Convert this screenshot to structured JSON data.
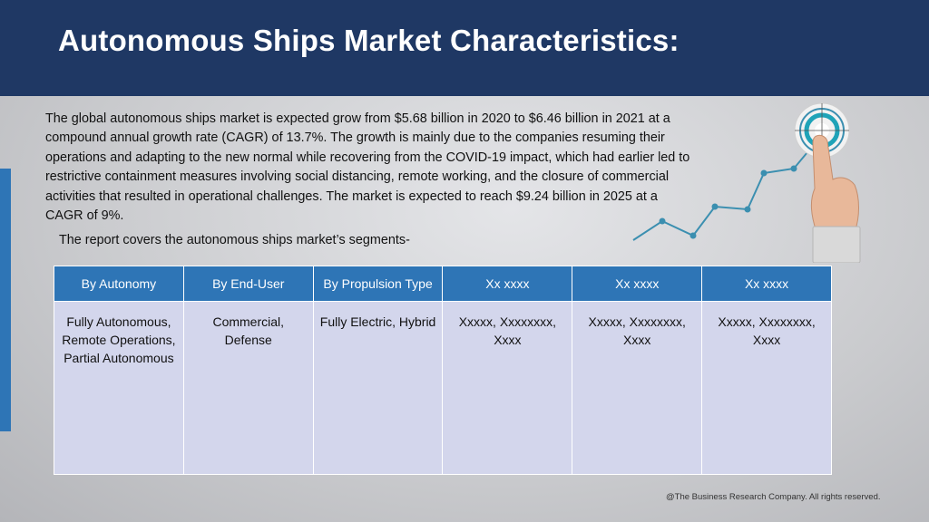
{
  "header": {
    "title": "Autonomous Ships Market Characteristics:"
  },
  "intro": "The global autonomous ships market is expected grow from $5.68 billion in 2020 to $6.46 billion in 2021 at a compound annual growth rate (CAGR) of 13.7%. The growth is mainly due to the companies resuming their operations and adapting to the new normal while recovering from the COVID-19 impact, which had earlier led to restrictive containment measures involving social distancing, remote working, and the closure of commercial activities that resulted in operational challenges. The market is expected to reach $9.24 billion in 2025 at a CAGR of 9%.",
  "segments_note": "The report covers the autonomous ships market’s segments-",
  "table": {
    "headers": [
      "By Autonomy",
      "By End-User",
      "By Propulsion Type",
      "Xx xxxx",
      "Xx xxxx",
      "Xx xxxx"
    ],
    "cells": [
      "Fully Autonomous, Remote Operations, Partial Autonomous",
      "Commercial, Defense",
      "Fully Electric, Hybrid",
      "Xxxxx, Xxxxxxxx, Xxxx",
      "Xxxxx, Xxxxxxxx, Xxxx",
      "Xxxxx, Xxxxxxxx, Xxxx"
    ]
  },
  "footer": "@The Business Research Company. All rights reserved.",
  "colors": {
    "header_bg": "#1f3864",
    "accent": "#2e75b6",
    "cell_bg": "#d3d6ec",
    "line": "#3b8fb0"
  },
  "icons": [
    "growth-line-icon",
    "target-icon",
    "pointing-hand-icon"
  ]
}
